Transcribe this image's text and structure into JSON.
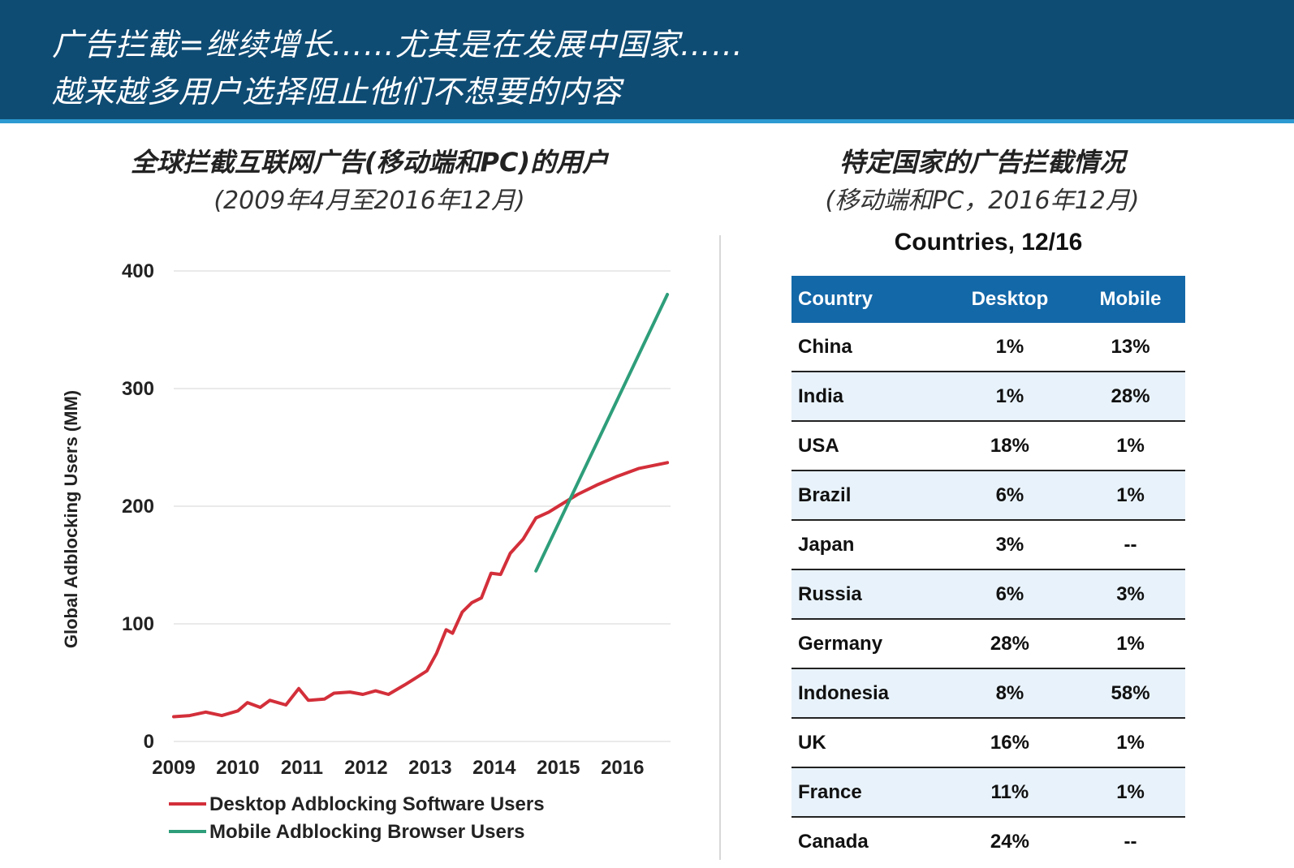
{
  "header": {
    "line1": "广告拦截=继续增长……尤其是在发展中国家……",
    "line2": "越来越多用户选择阻止他们不想要的内容",
    "bg_color": "#0f4c74"
  },
  "left_panel": {
    "title": "全球拦截互联网广告(移动端和PC)的用户",
    "subtitle": "(2009年4月至2016年12月)"
  },
  "right_panel": {
    "title": "特定国家的广告拦截情况",
    "subtitle": "(移动端和PC，2016年12月)"
  },
  "chart_data": {
    "type": "line",
    "title": "",
    "xlabel": "",
    "ylabel": "Global Adblocking Users (MM)",
    "xlim": [
      2009.0,
      2016.75
    ],
    "ylim": [
      0,
      400
    ],
    "x_ticks": [
      "2009",
      "2010",
      "2011",
      "2012",
      "2013",
      "2014",
      "2015",
      "2016"
    ],
    "y_ticks": [
      "0",
      "100",
      "200",
      "300",
      "400"
    ],
    "grid": true,
    "legend_position": "bottom-left",
    "series": [
      {
        "name": "Desktop Adblocking Software Users",
        "color": "#d32f3a",
        "points": [
          [
            2009.0,
            21
          ],
          [
            2009.25,
            22
          ],
          [
            2009.5,
            25
          ],
          [
            2009.75,
            22
          ],
          [
            2010.0,
            26
          ],
          [
            2010.15,
            33
          ],
          [
            2010.35,
            29
          ],
          [
            2010.5,
            35
          ],
          [
            2010.75,
            31
          ],
          [
            2010.95,
            45
          ],
          [
            2011.1,
            35
          ],
          [
            2011.35,
            36
          ],
          [
            2011.5,
            41
          ],
          [
            2011.75,
            42
          ],
          [
            2011.95,
            40
          ],
          [
            2012.15,
            43
          ],
          [
            2012.35,
            40
          ],
          [
            2012.6,
            48
          ],
          [
            2012.75,
            53
          ],
          [
            2012.95,
            60
          ],
          [
            2013.1,
            75
          ],
          [
            2013.25,
            95
          ],
          [
            2013.35,
            92
          ],
          [
            2013.5,
            110
          ],
          [
            2013.65,
            118
          ],
          [
            2013.8,
            122
          ],
          [
            2013.95,
            143
          ],
          [
            2014.1,
            142
          ],
          [
            2014.25,
            160
          ],
          [
            2014.45,
            172
          ],
          [
            2014.65,
            190
          ],
          [
            2014.85,
            195
          ],
          [
            2015.0,
            200
          ],
          [
            2015.3,
            210
          ],
          [
            2015.6,
            218
          ],
          [
            2015.9,
            225
          ],
          [
            2016.25,
            232
          ],
          [
            2016.7,
            237
          ]
        ]
      },
      {
        "name": "Mobile Adblocking Browser Users",
        "color": "#2e9e7a",
        "points": [
          [
            2014.65,
            145
          ],
          [
            2016.7,
            380
          ]
        ]
      }
    ]
  },
  "table": {
    "title": "Countries, 12/16",
    "header_color": "#1368a8",
    "columns": [
      "Country",
      "Desktop",
      "Mobile"
    ],
    "rows": [
      [
        "China",
        "1%",
        "13%"
      ],
      [
        "India",
        "1%",
        "28%"
      ],
      [
        "USA",
        "18%",
        "1%"
      ],
      [
        "Brazil",
        "6%",
        "1%"
      ],
      [
        "Japan",
        "3%",
        "--"
      ],
      [
        "Russia",
        "6%",
        "3%"
      ],
      [
        "Germany",
        "28%",
        "1%"
      ],
      [
        "Indonesia",
        "8%",
        "58%"
      ],
      [
        "UK",
        "16%",
        "1%"
      ],
      [
        "France",
        "11%",
        "1%"
      ],
      [
        "Canada",
        "24%",
        "--"
      ]
    ]
  }
}
